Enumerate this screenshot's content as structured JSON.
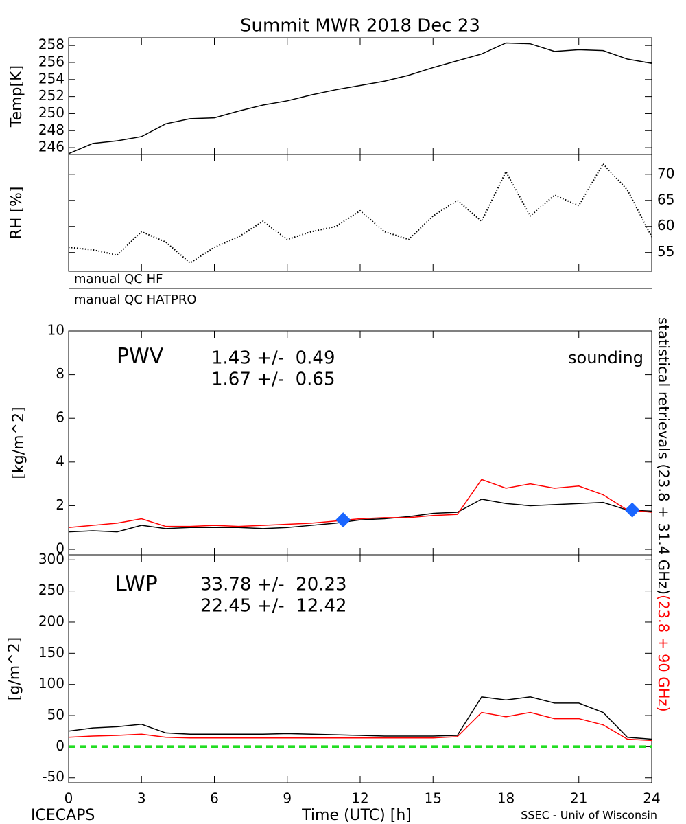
{
  "chart_data": [
    {
      "type": "line",
      "title": "Summit MWR 2018 Dec 23",
      "ylabel": "Temp[K]",
      "x": [
        0,
        1,
        2,
        3,
        4,
        5,
        6,
        7,
        8,
        9,
        10,
        11,
        12,
        13,
        14,
        15,
        16,
        17,
        18,
        19,
        20,
        21,
        22,
        23,
        24
      ],
      "xlim": [
        0,
        24
      ],
      "ylim": [
        245.2,
        258.9
      ],
      "yticks": [
        246,
        248,
        250,
        252,
        254,
        256,
        258
      ],
      "yaxis_side": "left",
      "series": [
        {
          "name": "Temp",
          "color": "#000000",
          "style": "line",
          "values": [
            245.3,
            246.5,
            246.8,
            247.3,
            248.8,
            249.4,
            249.5,
            250.3,
            251.0,
            251.5,
            252.2,
            252.8,
            253.3,
            253.8,
            254.5,
            255.4,
            256.2,
            257.0,
            258.3,
            258.2,
            257.3,
            257.5,
            257.4,
            256.4,
            255.9
          ]
        }
      ]
    },
    {
      "type": "line",
      "ylabel": "RH [%]",
      "x": [
        0,
        1,
        2,
        3,
        4,
        5,
        6,
        7,
        8,
        9,
        10,
        11,
        12,
        13,
        14,
        15,
        16,
        17,
        18,
        19,
        20,
        21,
        22,
        23,
        24
      ],
      "xlim": [
        0,
        24
      ],
      "ylim": [
        51.4,
        73.8
      ],
      "yticks": [
        55,
        60,
        65,
        70
      ],
      "yaxis_side": "right",
      "series": [
        {
          "name": "RH",
          "color": "#000000",
          "style": "dots",
          "values": [
            56,
            55.5,
            54.5,
            59,
            57,
            53,
            56,
            58,
            61,
            57.5,
            59,
            60,
            63,
            59,
            57.5,
            62,
            65,
            61,
            70.5,
            62,
            66,
            64,
            72,
            67,
            58
          ]
        }
      ]
    },
    {
      "type": "line",
      "ylabel": "[kg/m^2]",
      "x": [
        0,
        1,
        2,
        3,
        4,
        5,
        6,
        7,
        8,
        9,
        10,
        11,
        12,
        13,
        14,
        15,
        16,
        17,
        18,
        19,
        20,
        21,
        22,
        23,
        24
      ],
      "xlim": [
        0,
        24
      ],
      "ylim": [
        -0.25,
        10
      ],
      "yticks": [
        0,
        2,
        4,
        6,
        8,
        10
      ],
      "yaxis_side": "left",
      "annotations": [
        {
          "text": "PWV",
          "color": "#000000"
        },
        {
          "text": "1.43 +/-  0.49",
          "color": "#000000"
        },
        {
          "text": "1.67 +/-  0.65",
          "color": "#ff0000"
        }
      ],
      "series": [
        {
          "name": "HF",
          "color": "#000000",
          "style": "line",
          "values": [
            0.8,
            0.85,
            0.8,
            1.1,
            0.95,
            1.0,
            1.0,
            1.0,
            0.95,
            1.0,
            1.1,
            1.2,
            1.35,
            1.4,
            1.5,
            1.65,
            1.7,
            2.3,
            2.1,
            2.0,
            2.05,
            2.1,
            2.15,
            1.8,
            1.75
          ]
        },
        {
          "name": "HATPRO",
          "color": "#ff0000",
          "style": "line",
          "values": [
            1.0,
            1.1,
            1.2,
            1.4,
            1.05,
            1.05,
            1.1,
            1.05,
            1.1,
            1.15,
            1.2,
            1.3,
            1.4,
            1.45,
            1.45,
            1.55,
            1.6,
            3.2,
            2.8,
            3.0,
            2.8,
            2.9,
            2.5,
            1.8,
            1.7
          ]
        },
        {
          "name": "sounding",
          "color": "#1a66ff",
          "style": "diamond",
          "x": [
            11.3,
            23.2
          ],
          "values": [
            1.35,
            1.8
          ]
        }
      ]
    },
    {
      "type": "line",
      "ylabel": "[g/m^2]",
      "xlabel": "Time (UTC) [h]",
      "x": [
        0,
        1,
        2,
        3,
        4,
        5,
        6,
        7,
        8,
        9,
        10,
        11,
        12,
        13,
        14,
        15,
        16,
        17,
        18,
        19,
        20,
        21,
        22,
        23,
        24
      ],
      "xlim": [
        0,
        24
      ],
      "xticks": [
        0,
        3,
        6,
        9,
        12,
        15,
        18,
        21,
        24
      ],
      "ylim": [
        -58,
        308
      ],
      "yticks": [
        -50,
        0,
        50,
        100,
        150,
        200,
        250,
        300
      ],
      "yaxis_side": "left",
      "hline": {
        "value": 0,
        "color": "#22dd22"
      },
      "annotations": [
        {
          "text": "LWP",
          "color": "#000000"
        },
        {
          "text": "33.78 +/-  20.23",
          "color": "#000000"
        },
        {
          "text": "22.45 +/-  12.42",
          "color": "#ff0000"
        }
      ],
      "series": [
        {
          "name": "HF",
          "color": "#000000",
          "style": "line",
          "values": [
            25,
            30,
            32,
            36,
            22,
            20,
            20,
            20,
            20,
            21,
            20,
            19,
            18,
            17,
            17,
            17,
            18,
            80,
            75,
            80,
            70,
            70,
            55,
            15,
            12
          ]
        },
        {
          "name": "HATPRO",
          "color": "#ff0000",
          "style": "line",
          "values": [
            15,
            17,
            18,
            20,
            15,
            14,
            14,
            14,
            14,
            14,
            14,
            14,
            14,
            14,
            14,
            14,
            16,
            55,
            48,
            55,
            45,
            45,
            35,
            12,
            10
          ]
        }
      ]
    }
  ],
  "qc_labels": [
    "manual QC HF",
    "manual QC HATPRO"
  ],
  "side_label": [
    {
      "text": "statistical retrievals (23.8 + 31.4 GHz)",
      "color": "#000000"
    },
    {
      "text": "(23.8 + 90 GHz)",
      "color": "#ff0000"
    }
  ],
  "footer": {
    "left": "ICECAPS",
    "right": "SSEC - Univ of Wisconsin"
  }
}
